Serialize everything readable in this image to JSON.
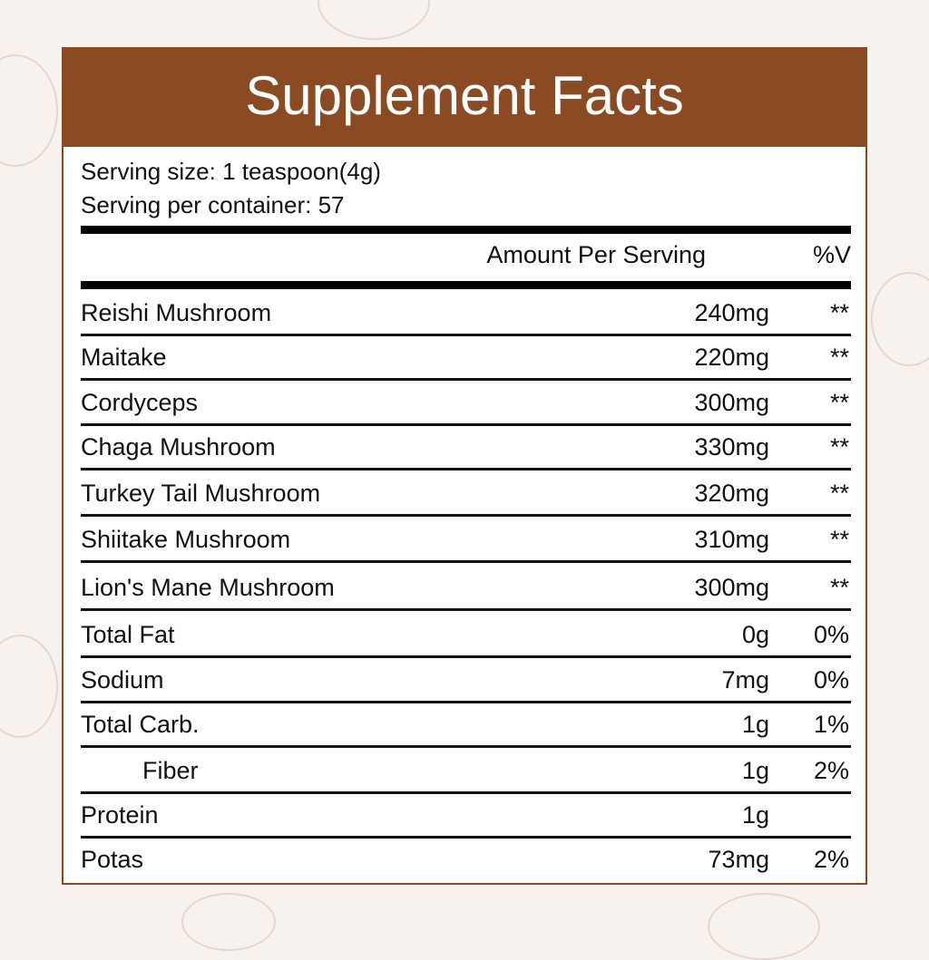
{
  "title": "Supplement Facts",
  "serving_size": "Serving size: 1 teaspoon(4g)",
  "servings_per_container": "Serving per container: 57",
  "columns": {
    "amount": "Amount Per Serving",
    "dv": "%V"
  },
  "colors": {
    "header": "#8a4a22",
    "background": "#f7f2ee"
  },
  "rows": [
    {
      "name": "Reishi Mushroom",
      "amount": "240mg",
      "dv": "**"
    },
    {
      "name": "Maitake",
      "amount": "220mg",
      "dv": "**"
    },
    {
      "name": "Cordyceps",
      "amount": "300mg",
      "dv": "**"
    },
    {
      "name": "Chaga Mushroom",
      "amount": "330mg",
      "dv": "**"
    },
    {
      "name": "Turkey Tail Mushroom",
      "amount": "320mg",
      "dv": "**"
    },
    {
      "name": "Shiitake Mushroom",
      "amount": "310mg",
      "dv": "**"
    },
    {
      "name": "Lion's Mane Mushroom",
      "amount": "300mg",
      "dv": "**"
    },
    {
      "name": "Total Fat",
      "amount": "0g",
      "dv": "0%"
    },
    {
      "name": "Sodium",
      "amount": "7mg",
      "dv": "0%"
    },
    {
      "name": "Total Carb.",
      "amount": "1g",
      "dv": "1%"
    },
    {
      "name": "Fiber",
      "amount": "1g",
      "dv": "2%",
      "indent": true
    },
    {
      "name": "Protein",
      "amount": "1g",
      "dv": ""
    },
    {
      "name": "Potas",
      "amount": "73mg",
      "dv": "2%"
    }
  ]
}
